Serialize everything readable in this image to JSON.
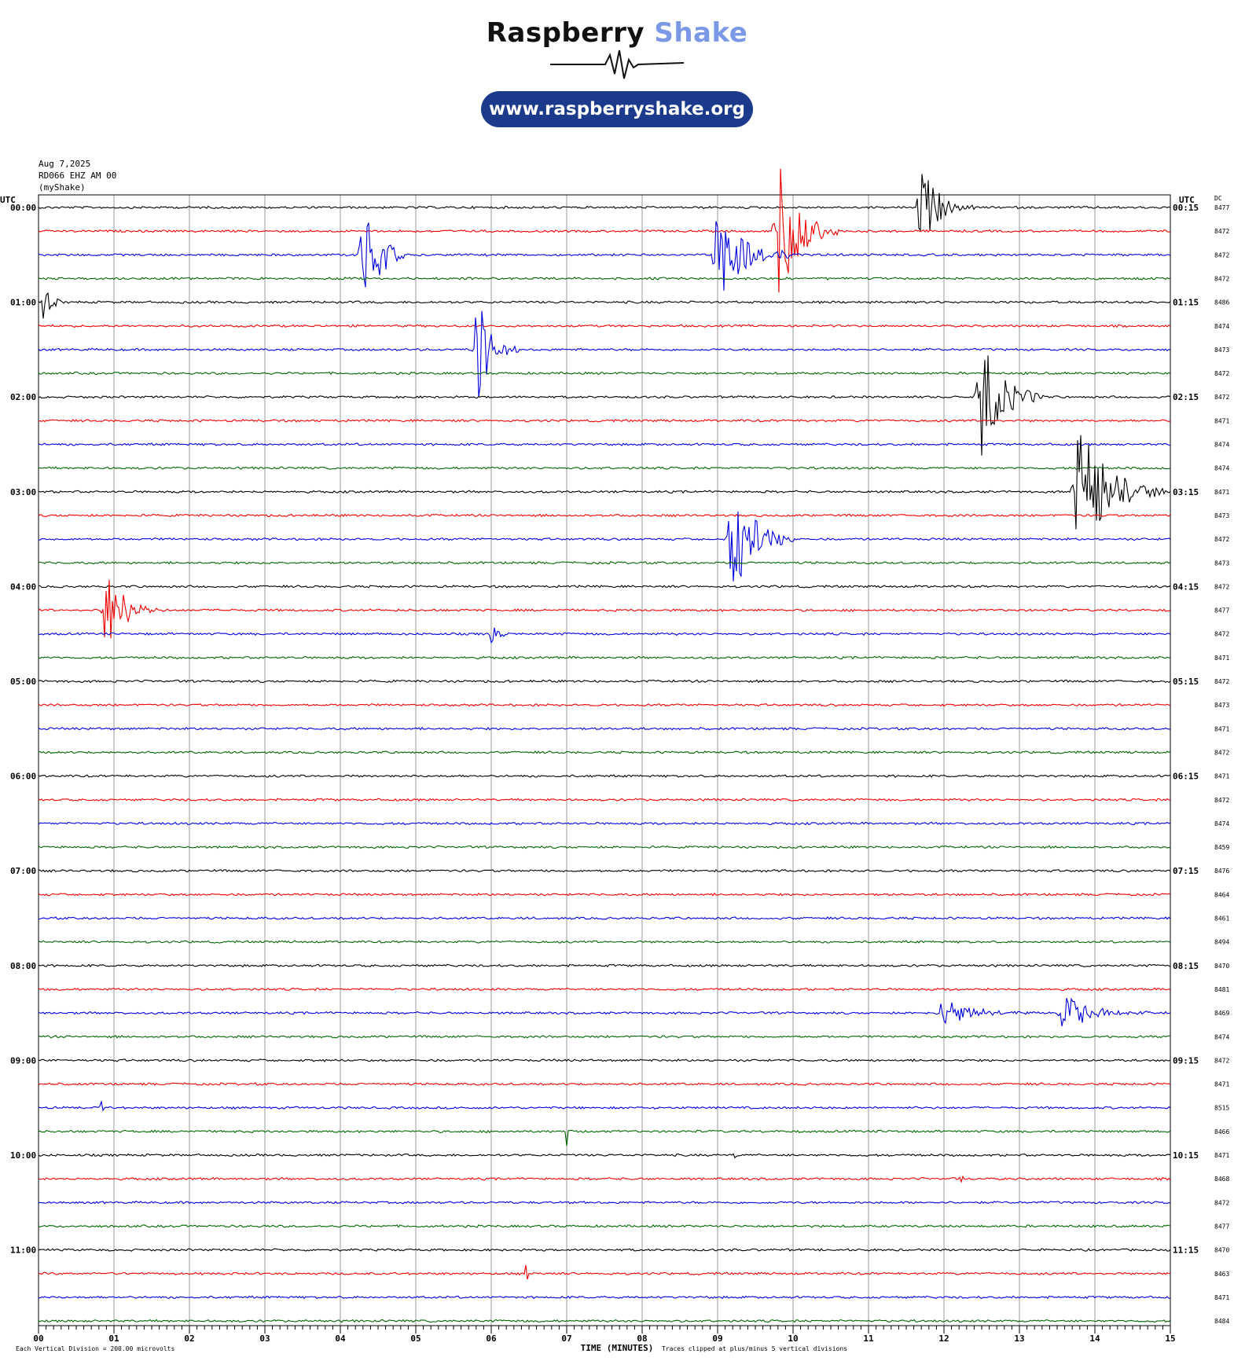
{
  "logo": {
    "word1": "Raspberry",
    "word2": "Shake",
    "url": "www.raspberryshake.org",
    "accent_color": "#7a98e6",
    "pill_color": "#1b3a8c"
  },
  "header": {
    "date": "Aug 7,2025",
    "station": "RD066 EHZ AM 00",
    "source": "(myShake)"
  },
  "chart_data": {
    "type": "line",
    "subtype": "helicorder",
    "xlabel": "TIME (MINUTES)",
    "left_axis_label": "UTC",
    "right_axis_label": "UTC",
    "dc_label": "DC",
    "footer_left": "Each Vertical Division =  200.00 microvolts",
    "footer_right": "Traces clipped at plus/minus 5 vertical divisions",
    "x_ticks": [
      "00",
      "01",
      "02",
      "03",
      "04",
      "05",
      "06",
      "07",
      "08",
      "09",
      "10",
      "11",
      "12",
      "13",
      "14",
      "15"
    ],
    "xlim": [
      0,
      15
    ],
    "grid": true,
    "trace_colors": [
      "#000000",
      "#ee0000",
      "#0000dd",
      "#006600"
    ],
    "rows": 48,
    "left_labels": [
      "00:00",
      "01:00",
      "02:00",
      "03:00",
      "04:00",
      "05:00",
      "06:00",
      "07:00",
      "08:00",
      "09:00",
      "10:00",
      "11:00"
    ],
    "right_labels": [
      "00:15",
      "01:15",
      "02:15",
      "03:15",
      "04:15",
      "05:15",
      "06:15",
      "07:15",
      "08:15",
      "09:15",
      "10:15",
      "11:15"
    ],
    "dc_values": [
      "8477",
      "8472",
      "8472",
      "8472",
      "8486",
      "8474",
      "8473",
      "8472",
      "8472",
      "8471",
      "8474",
      "8474",
      "8471",
      "8473",
      "8472",
      "8473",
      "8472",
      "8477",
      "8472",
      "8471",
      "8472",
      "8473",
      "8471",
      "8472",
      "8471",
      "8472",
      "8474",
      "8459",
      "8476",
      "8464",
      "8461",
      "8494",
      "8470",
      "8481",
      "8469",
      "8474",
      "8472",
      "8471",
      "8515",
      "8466",
      "8471",
      "8468",
      "8472",
      "8477",
      "8470",
      "8463",
      "8471",
      "8484"
    ],
    "events": [
      {
        "row": 0,
        "minute": 11.7,
        "amplitude": 1.8,
        "duration": 0.5
      },
      {
        "row": 1,
        "minute": 9.8,
        "amplitude": 3.0,
        "duration": 0.6
      },
      {
        "row": 2,
        "minute": 4.3,
        "amplitude": 3.2,
        "duration": 0.4
      },
      {
        "row": 2,
        "minute": 9.0,
        "amplitude": 2.0,
        "duration": 0.7
      },
      {
        "row": 4,
        "minute": 0.05,
        "amplitude": 1.0,
        "duration": 0.2
      },
      {
        "row": 6,
        "minute": 5.8,
        "amplitude": 2.5,
        "duration": 0.4
      },
      {
        "row": 8,
        "minute": 12.5,
        "amplitude": 2.5,
        "duration": 0.6
      },
      {
        "row": 12,
        "minute": 13.8,
        "amplitude": 3.0,
        "duration": 0.8
      },
      {
        "row": 14,
        "minute": 9.2,
        "amplitude": 2.5,
        "duration": 0.6
      },
      {
        "row": 17,
        "minute": 0.9,
        "amplitude": 2.0,
        "duration": 0.5
      },
      {
        "row": 18,
        "minute": 6.0,
        "amplitude": 0.6,
        "duration": 0.2
      },
      {
        "row": 34,
        "minute": 12.0,
        "amplitude": 0.6,
        "duration": 0.8
      },
      {
        "row": 34,
        "minute": 13.6,
        "amplitude": 0.8,
        "duration": 0.8
      },
      {
        "row": 38,
        "minute": 0.8,
        "amplitude": 2.0,
        "duration": 0.05
      },
      {
        "row": 39,
        "minute": 7.0,
        "amplitude": 0.6,
        "duration": 0.05
      },
      {
        "row": 40,
        "minute": 9.2,
        "amplitude": 0.4,
        "duration": 0.05
      },
      {
        "row": 41,
        "minute": 12.2,
        "amplitude": 0.6,
        "duration": 0.05
      },
      {
        "row": 45,
        "minute": 6.45,
        "amplitude": 2.5,
        "duration": 0.05
      }
    ]
  }
}
